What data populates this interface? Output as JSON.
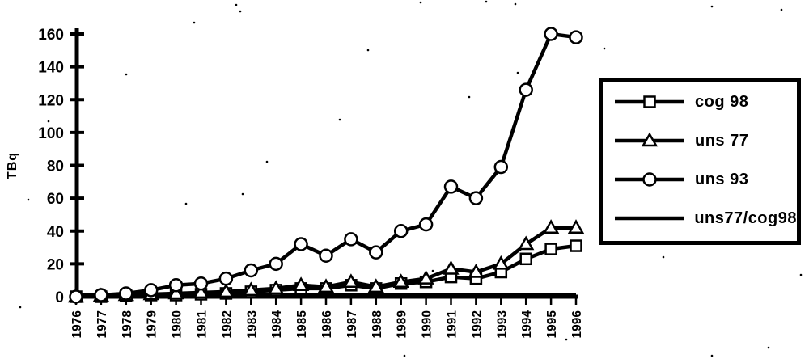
{
  "chart_data": {
    "type": "line",
    "title": "",
    "xlabel": "",
    "ylabel": "TBq",
    "x": [
      1976,
      1977,
      1978,
      1979,
      1980,
      1981,
      1982,
      1983,
      1984,
      1985,
      1986,
      1987,
      1988,
      1989,
      1990,
      1991,
      1992,
      1993,
      1994,
      1995,
      1996
    ],
    "y_ticks": [
      0,
      20,
      40,
      60,
      80,
      100,
      120,
      140,
      160
    ],
    "ylim": [
      0,
      160
    ],
    "grid": false,
    "legend_position": "right",
    "series": [
      {
        "name": "cog 98",
        "marker": "square",
        "values": [
          0,
          0,
          0.5,
          1,
          1,
          1.5,
          2,
          3,
          4,
          5,
          5,
          7,
          5,
          8,
          9,
          12,
          11,
          15,
          23,
          29,
          31
        ]
      },
      {
        "name": "uns 77",
        "marker": "triangle",
        "values": [
          0,
          0.5,
          1,
          1.5,
          2,
          2.5,
          3,
          4,
          5,
          7,
          6,
          9,
          6,
          9,
          11,
          17,
          15,
          20,
          32,
          42,
          42
        ]
      },
      {
        "name": "uns 93",
        "marker": "circle",
        "values": [
          0,
          1,
          2,
          4,
          7,
          8,
          11,
          16,
          20,
          32,
          25,
          35,
          27,
          40,
          44,
          67,
          60,
          79,
          126,
          160,
          158
        ]
      },
      {
        "name": "uns77/cog98",
        "marker": "none",
        "values": [
          1.4,
          1.4,
          1.4,
          1.4,
          1.4,
          1.4,
          1.4,
          1.4,
          1.4,
          1.4,
          1.4,
          1.4,
          1.4,
          1.4,
          1.4,
          1.4,
          1.4,
          1.4,
          1.4,
          1.4,
          1.4
        ]
      }
    ],
    "colors": {
      "line": "#000000",
      "marker_fill": "#ffffff",
      "background": "#ffffff"
    }
  }
}
